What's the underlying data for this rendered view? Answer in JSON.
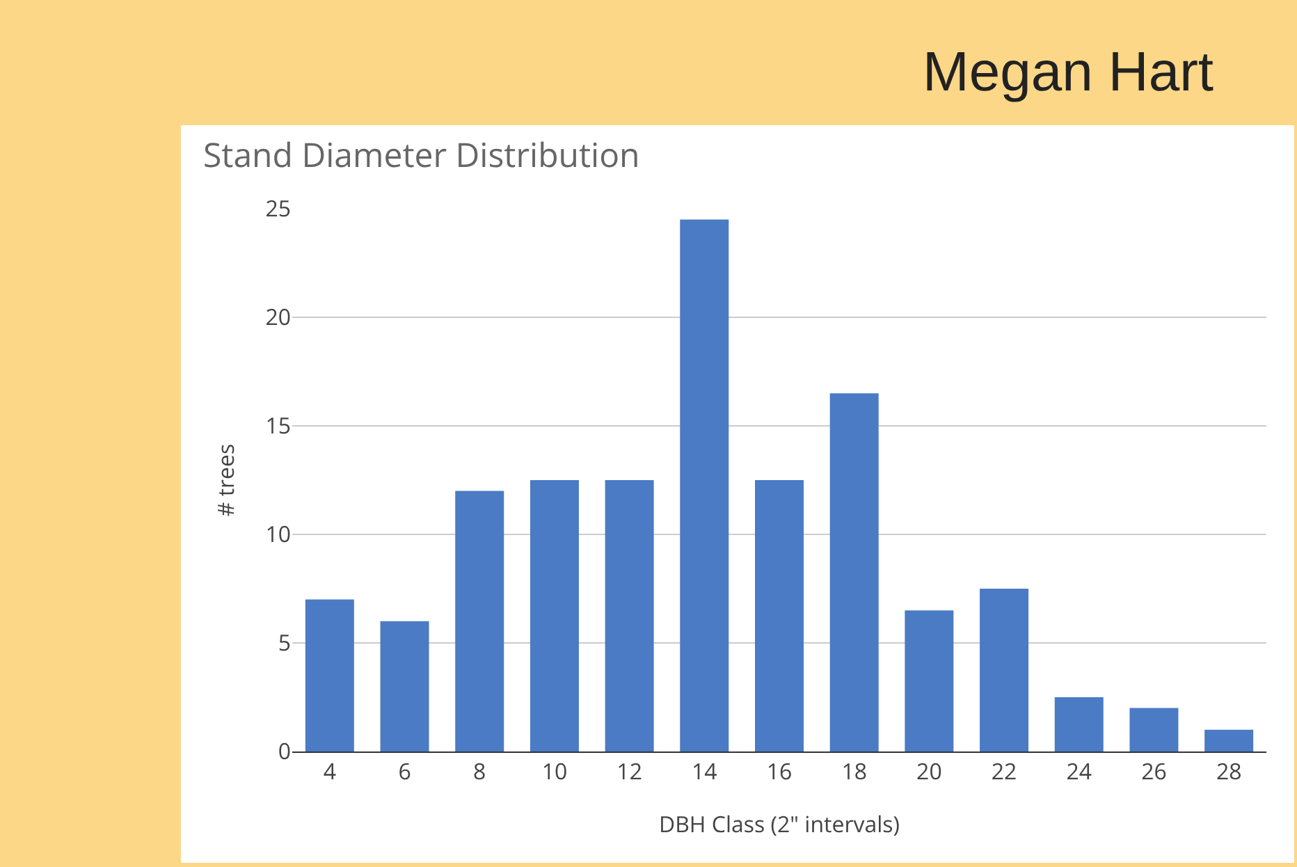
{
  "chart_data": {
    "type": "bar",
    "title": "Stand Diameter Distribution",
    "xlabel": "DBH Class (2\" intervals)",
    "ylabel": "# trees",
    "categories": [
      "4",
      "6",
      "8",
      "10",
      "12",
      "14",
      "16",
      "18",
      "20",
      "22",
      "24",
      "26",
      "28"
    ],
    "values": [
      7,
      6,
      12,
      12.5,
      12.5,
      24.5,
      12.5,
      16.5,
      6.5,
      7.5,
      2.5,
      2,
      1
    ],
    "color": "#4a7bc4",
    "ylim": [
      0,
      25
    ],
    "yticks": [
      0,
      5,
      10,
      15,
      20,
      25
    ],
    "grid": "y",
    "legend": false,
    "annotations": [
      "Megan Hart"
    ]
  }
}
